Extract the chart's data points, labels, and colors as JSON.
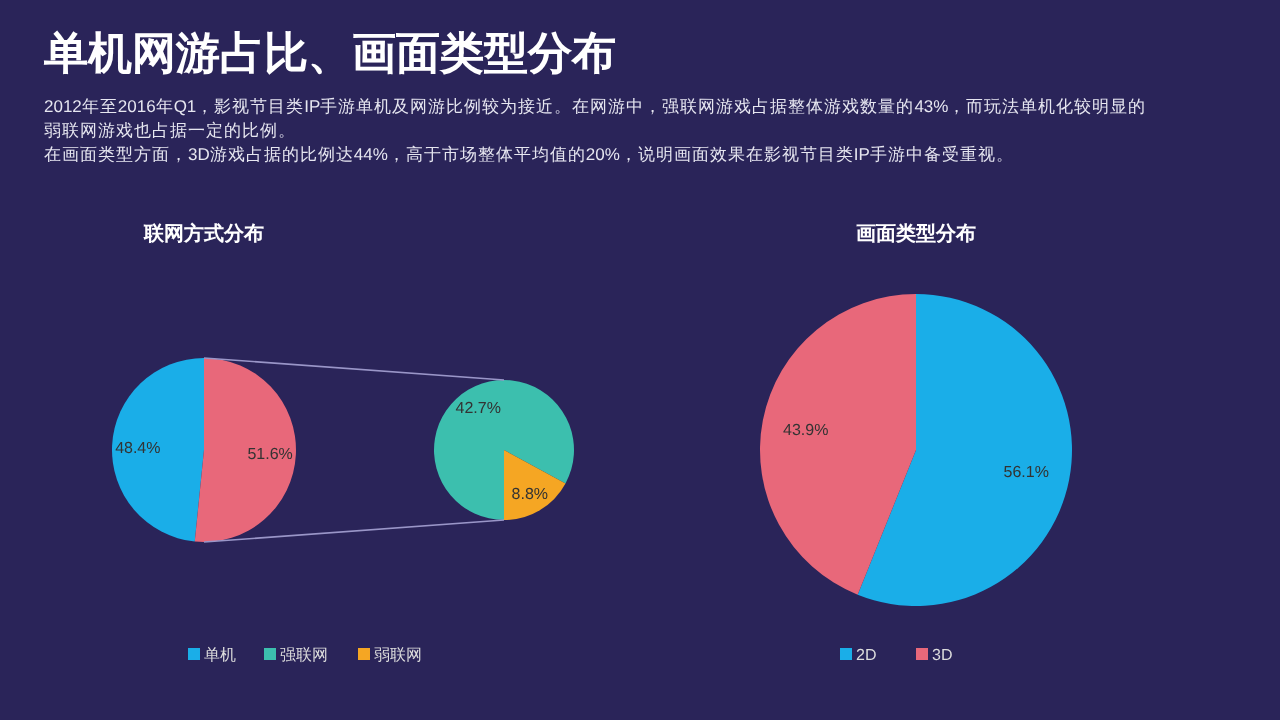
{
  "chart_data": [
    {
      "type": "pie",
      "title": "联网方式分布",
      "annotations": [
        "单机网游占比、画面类型分布",
        "2012年至2016年Q1，影视节目类IP手游单机及网游比例较为接近。在网游中，强联网游戏占据整体游戏数量的43%，而玩法单机化较明显的弱联网游戏也占据一定的比例。",
        "在画面类型方面，3D游戏占据的比例达44%，高于市场整体平均值的20%，说明画面效果在影视节目类IP手游中备受重视。"
      ],
      "categories": [
        "单机",
        null
      ],
      "values": [
        48.4,
        51.6
      ],
      "value_labels": [
        "48.4%",
        "51.6%"
      ],
      "colors": [
        "#1aaee8",
        "#e8687a"
      ],
      "legend": "bottom"
    },
    {
      "type": "pie",
      "categories": [
        "强联网",
        "弱联网"
      ],
      "values": [
        42.7,
        8.8
      ],
      "value_labels": [
        "42.7%",
        "8.8%"
      ],
      "colors": [
        "#3cbfae",
        "#f5a623"
      ],
      "legend": "bottom"
    },
    {
      "type": "pie",
      "title": "画面类型分布",
      "categories": [
        "2D",
        "3D"
      ],
      "values": [
        56.1,
        43.9
      ],
      "value_labels": [
        "56.1%",
        "43.9%"
      ],
      "colors": [
        "#1aaee8",
        "#e8687a"
      ],
      "legend": "bottom"
    }
  ]
}
